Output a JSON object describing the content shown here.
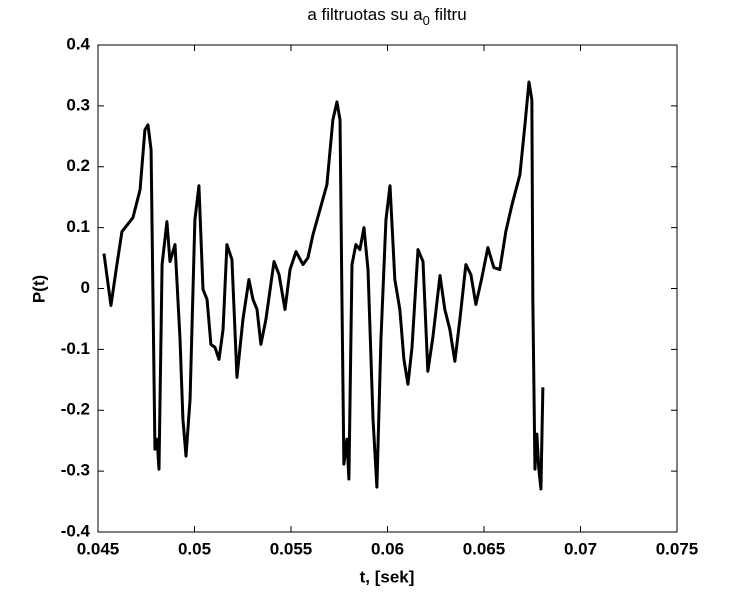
{
  "chart_data": {
    "type": "line",
    "title": {
      "text": "a filtruotas su a",
      "subscript": "0",
      "suffix": " filtru"
    },
    "xlabel": "t, [sek]",
    "ylabel": "P(t)",
    "x": [
      0.04531,
      0.04567,
      0.04598,
      0.04624,
      0.04681,
      0.04718,
      0.04743,
      0.04759,
      0.04775,
      0.04785,
      0.04795,
      0.04806,
      0.04816,
      0.04832,
      0.04857,
      0.04873,
      0.04899,
      0.04925,
      0.0494,
      0.04956,
      0.04977,
      0.05002,
      0.05023,
      0.05044,
      0.05065,
      0.05085,
      0.05106,
      0.05127,
      0.05148,
      0.05168,
      0.05194,
      0.0522,
      0.05251,
      0.05282,
      0.05303,
      0.05324,
      0.05344,
      0.0537,
      0.05412,
      0.05438,
      0.05469,
      0.05495,
      0.05526,
      0.05562,
      0.05588,
      0.05614,
      0.0565,
      0.05686,
      0.05717,
      0.05738,
      0.05754,
      0.05764,
      0.05774,
      0.0579,
      0.058,
      0.05816,
      0.05836,
      0.05857,
      0.05878,
      0.05899,
      0.05925,
      0.05945,
      0.05966,
      0.05992,
      0.06013,
      0.06038,
      0.06064,
      0.06085,
      0.06106,
      0.06127,
      0.06158,
      0.06184,
      0.06209,
      0.06235,
      0.06272,
      0.06297,
      0.06323,
      0.06349,
      0.06375,
      0.06406,
      0.06432,
      0.06458,
      0.06489,
      0.0652,
      0.06551,
      0.06582,
      0.06613,
      0.06645,
      0.06686,
      0.06712,
      0.06733,
      0.06748,
      0.06753,
      0.06764,
      0.06774,
      0.06784,
      0.06795,
      0.06805
    ],
    "series": [
      {
        "color": "#000000",
        "values": [
          0.0574,
          -0.0279,
          0.0393,
          0.0934,
          0.1164,
          0.1623,
          0.2606,
          0.2688,
          0.2278,
          -0.018,
          -0.2639,
          -0.2475,
          -0.2967,
          0.0393,
          0.1098,
          0.0443,
          0.0721,
          -0.0836,
          -0.2147,
          -0.2754,
          -0.1819,
          0.1131,
          0.1688,
          -0.0016,
          -0.018,
          -0.0918,
          -0.0967,
          -0.1164,
          -0.0672,
          0.0721,
          0.0475,
          -0.1459,
          -0.0508,
          0.0148,
          -0.018,
          -0.0344,
          -0.0918,
          -0.0508,
          0.0443,
          0.0229,
          -0.0344,
          0.0311,
          0.0606,
          0.0393,
          0.0508,
          0.0885,
          0.1295,
          0.1705,
          0.277,
          0.3065,
          0.277,
          -0.018,
          -0.2885,
          -0.2475,
          -0.313,
          0.0393,
          0.0721,
          0.0639,
          0.1,
          0.0311,
          -0.2147,
          -0.3262,
          -0.0836,
          0.1131,
          0.1688,
          0.0148,
          -0.0344,
          -0.1164,
          -0.1573,
          -0.0967,
          0.0639,
          0.0443,
          -0.136,
          -0.0803,
          0.0213,
          -0.0344,
          -0.0672,
          -0.1196,
          -0.0508,
          0.0393,
          0.0229,
          -0.0262,
          0.018,
          0.0672,
          0.0344,
          0.0311,
          0.0934,
          0.1377,
          0.1868,
          0.2688,
          0.3393,
          0.3098,
          -0.018,
          -0.2967,
          -0.2393,
          -0.2967,
          -0.3294,
          -0.1623
        ]
      }
    ],
    "xlim": [
      0.045,
      0.075
    ],
    "xticks": [
      0.045,
      0.05,
      0.055,
      0.06,
      0.065,
      0.07,
      0.075
    ],
    "ylim": [
      -0.4,
      0.4
    ],
    "yticks": [
      -0.4,
      -0.3,
      -0.2,
      -0.1,
      0,
      0.1,
      0.2,
      0.3,
      0.4
    ],
    "grid": false
  }
}
